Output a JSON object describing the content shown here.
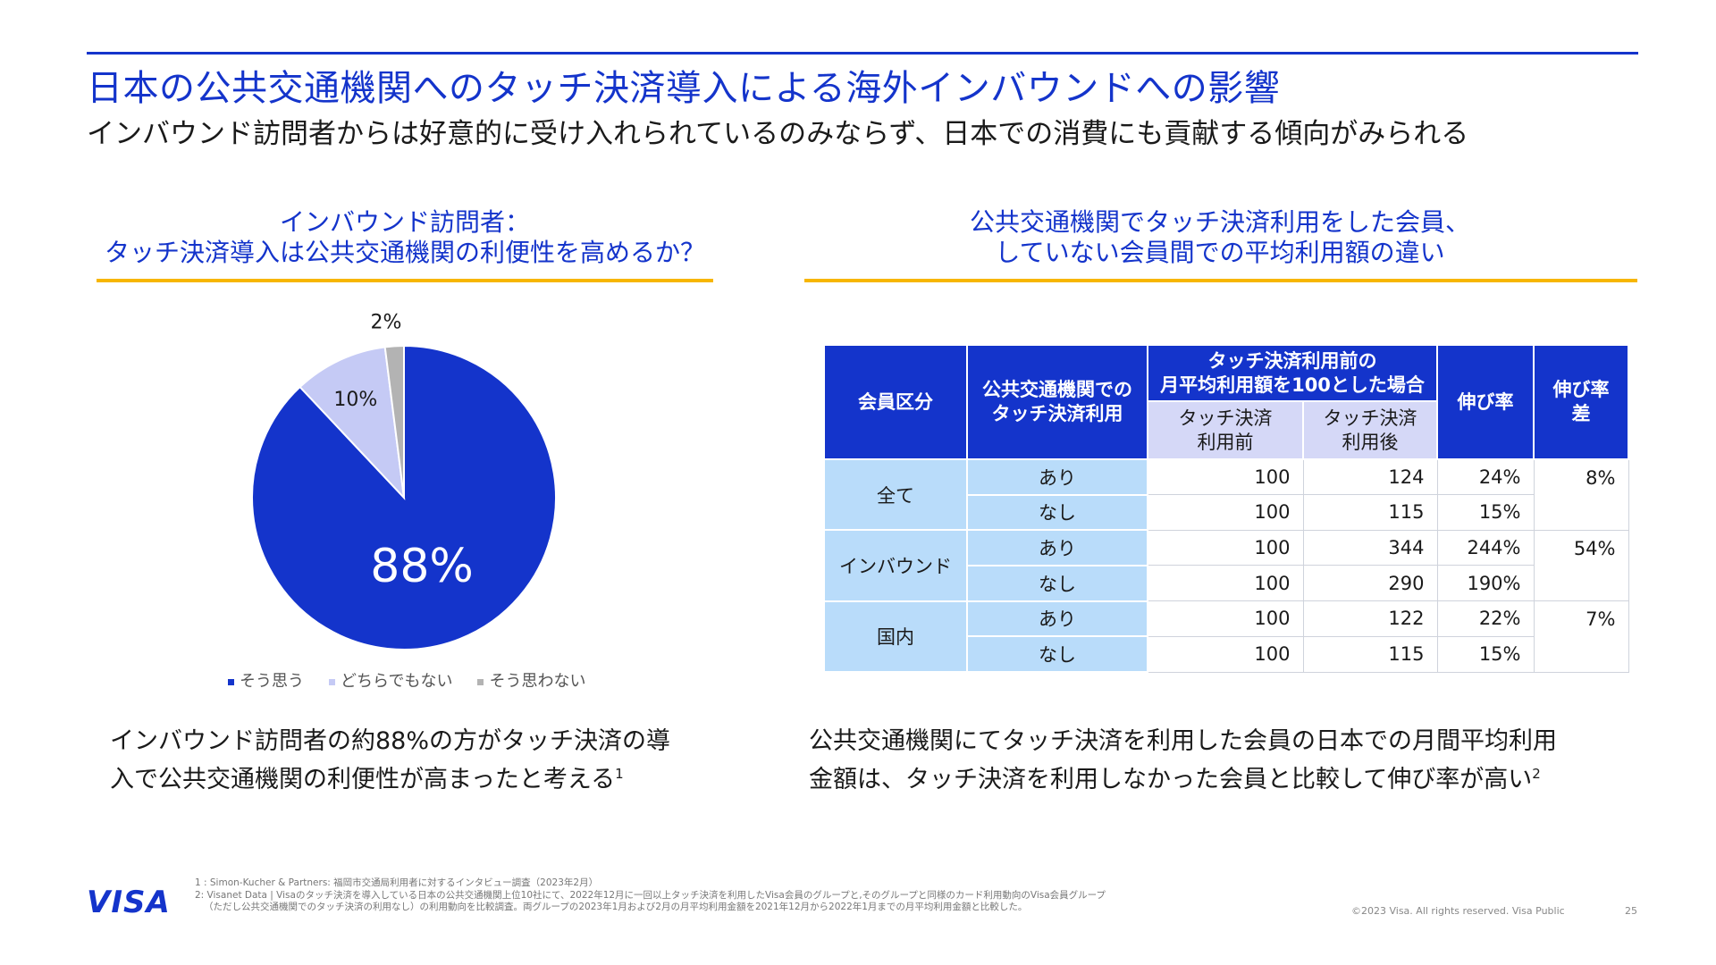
{
  "header": {
    "title": "日本の公共交通機関へのタッチ決済導入による海外インバウンドへの影響",
    "subtitle": "インバウンド訪問者からは好意的に受け入れられているのみならず、日本での消費にも貢献する傾向がみられる"
  },
  "left_section": {
    "heading_line1": "インバウンド訪問者：",
    "heading_line2": "タッチ決済導入は公共交通機関の利便性を高めるか？",
    "caption_line1": "インバウンド訪問者の約88%の方がタッチ決済の導",
    "caption_line2": "入で公共交通機関の利便性が高まったと考える",
    "caption_note": "1"
  },
  "chart_data": {
    "type": "pie",
    "title": "インバウンド訪問者：タッチ決済導入は公共交通機関の利便性を高めるか？",
    "slices": [
      {
        "label": "そう思う",
        "value": 88,
        "display": "88%",
        "color": "#1434cb"
      },
      {
        "label": "どちらでもない",
        "value": 10,
        "display": "10%",
        "color": "#c5caf5"
      },
      {
        "label": "そう思わない",
        "value": 2,
        "display": "2%",
        "color": "#b3b3b3"
      }
    ],
    "legend_position": "bottom"
  },
  "right_section": {
    "heading_line1": "公共交通機関でタッチ決済利用をした会員、",
    "heading_line2": "していない会員間での平均利用額の違い",
    "caption_line1": "公共交通機関にてタッチ決済を利用した会員の日本での月間平均利用",
    "caption_line2": "金額は、タッチ決済を利用しなかった会員と比較して伸び率が高い",
    "caption_note": "2"
  },
  "table": {
    "headers": {
      "member": "会員区分",
      "usage_line1": "公共交通機関での",
      "usage_line2": "タッチ決済利用",
      "base_line1": "タッチ決済利用前の",
      "base_line2": "月平均利用額を100とした場合",
      "before_line1": "タッチ決済",
      "before_line2": "利用前",
      "after_line1": "タッチ決済",
      "after_line2": "利用後",
      "growth": "伸び率",
      "growth_diff_line1": "伸び率",
      "growth_diff_line2": "差"
    },
    "groups": [
      {
        "name": "全て",
        "diff": "8%",
        "rows": [
          {
            "usage": "あり",
            "before": "100",
            "after": "124",
            "growth": "24%"
          },
          {
            "usage": "なし",
            "before": "100",
            "after": "115",
            "growth": "15%"
          }
        ]
      },
      {
        "name": "インバウンド",
        "diff": "54%",
        "rows": [
          {
            "usage": "あり",
            "before": "100",
            "after": "344",
            "growth": "244%"
          },
          {
            "usage": "なし",
            "before": "100",
            "after": "290",
            "growth": "190%"
          }
        ]
      },
      {
        "name": "国内",
        "diff": "7%",
        "rows": [
          {
            "usage": "あり",
            "before": "100",
            "after": "122",
            "growth": "22%"
          },
          {
            "usage": "なし",
            "before": "100",
            "after": "115",
            "growth": "15%"
          }
        ]
      }
    ]
  },
  "footer": {
    "logo": "VISA",
    "footnote1": "1 : Simon-Kucher & Partners: 福岡市交通局利用者に対するインタビュー調査（2023年2月）",
    "footnote2": "2: Visanet Data | Visaのタッチ決済を導入している日本の公共交通機関上位10社にて、2022年12月に一回以上タッチ決済を利用したVisa会員のグループと,そのグループと同様のカード利用動向のVisa会員グループ",
    "footnote3": "（ただし公共交通機関でのタッチ決済の利用なし）の利用動向を比較調査。両グループの2023年1月および2月の月平均利用金額を2021年12月から2022年1月までの月平均利用金額と比較した。",
    "copyright": "©2023 Visa. All rights reserved. Visa Public",
    "page_number": "25"
  }
}
